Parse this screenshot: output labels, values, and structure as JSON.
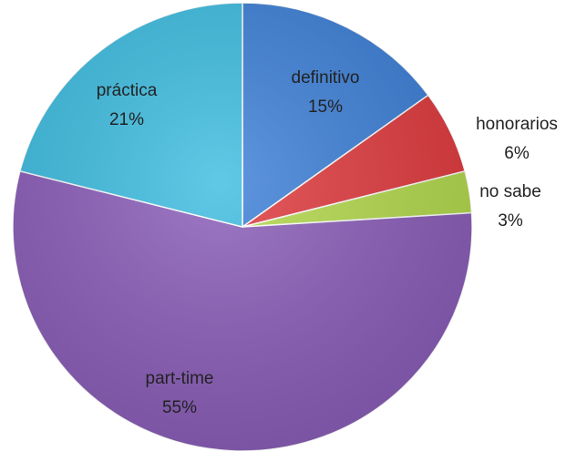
{
  "chart_data": {
    "type": "pie",
    "categories": [
      "definitivo",
      "honorarios",
      "no sabe",
      "part-time",
      "práctica"
    ],
    "values": [
      15,
      6,
      3,
      55,
      21
    ],
    "value_labels": [
      "15%",
      "6%",
      "3%",
      "55%",
      "21%"
    ],
    "colors": [
      "#3d80d8",
      "#e03a3e",
      "#b3d94c",
      "#8a5db9",
      "#3dbde1"
    ]
  }
}
